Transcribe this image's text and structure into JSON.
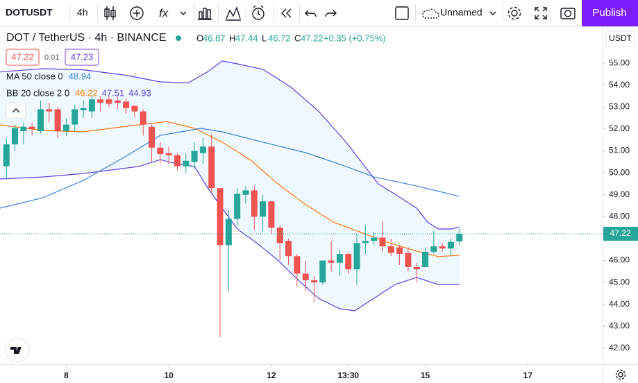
{
  "toolbar": {
    "symbol": "DOTUSDT",
    "interval": "4h",
    "layout": "Unnamed",
    "publish": "Publish"
  },
  "chart_data": {
    "type": "candlestick",
    "title": "DOT / TetherUS · 4h · BINANCE",
    "ohlc_labels": [
      "O",
      "H",
      "L",
      "C"
    ],
    "change": "+0.35 (+0.75%)",
    "bid": 47.22,
    "spread": 0.01,
    "ask": 47.23,
    "currency": "USDT",
    "indicators": [
      {
        "label": "MA 50 close 0",
        "values": [
          48.94
        ],
        "colors": [
          "#3d7fe0"
        ]
      },
      {
        "label": "BB 20 close 2 0",
        "values": [
          46.22,
          47.51,
          44.93
        ],
        "colors": [
          "#f57c00",
          "#5b3ee0",
          "#5b3ee0"
        ]
      }
    ],
    "up_color": "#26a69a",
    "down_color": "#ef5350",
    "x": [
      -28,
      -24,
      -20,
      -16,
      -12,
      -8,
      -4,
      0,
      4,
      8,
      12,
      16,
      20,
      24,
      28,
      32,
      36,
      40,
      44,
      48,
      52,
      56,
      60,
      64,
      68,
      72,
      76,
      80,
      84,
      88,
      92,
      96,
      100,
      104,
      108,
      112,
      116,
      120,
      124,
      128,
      132,
      136,
      140,
      144,
      148,
      152,
      156,
      160,
      164,
      168,
      172,
      176,
      180,
      184
    ],
    "open": [
      50.3,
      51.3,
      51.9,
      52.1,
      51.9,
      52.9,
      52.9,
      51.9,
      52.2,
      52.85,
      52.8,
      53.35,
      53.35,
      53.3,
      53.25,
      53.05,
      52.8,
      52.1,
      51.15,
      50.9,
      50.8,
      50.3,
      50.5,
      50.9,
      51.2,
      49.3,
      46.7,
      47.9,
      49.0,
      49.2,
      48.0,
      48.7,
      47.5,
      46.9,
      46.2,
      45.4,
      45.1,
      45.0,
      46.0,
      45.9,
      46.3,
      45.6,
      46.8,
      46.9,
      47.05,
      46.65,
      46.6,
      46.35,
      45.7,
      45.7,
      46.4,
      46.65,
      46.55,
      46.87
    ],
    "high": [
      51.6,
      52.2,
      52.3,
      52.3,
      53.3,
      53.2,
      53.0,
      52.5,
      53.1,
      53.3,
      53.5,
      53.5,
      53.6,
      53.5,
      53.4,
      53.1,
      52.9,
      52.2,
      51.4,
      51.2,
      50.9,
      50.9,
      51.4,
      51.6,
      51.8,
      49.3,
      48.3,
      49.3,
      49.4,
      49.4,
      49.0,
      48.7,
      47.6,
      47.0,
      46.3,
      46.0,
      45.3,
      46.0,
      46.9,
      46.5,
      46.4,
      47.2,
      47.6,
      47.3,
      47.8,
      47.0,
      46.7,
      46.6,
      45.9,
      46.6,
      47.35,
      46.8,
      47.0,
      47.44
    ],
    "low": [
      49.7,
      51.0,
      51.3,
      51.7,
      51.8,
      52.3,
      51.6,
      51.7,
      51.9,
      52.5,
      52.5,
      52.8,
      53.0,
      52.9,
      52.7,
      52.5,
      51.7,
      50.5,
      50.4,
      50.4,
      50.1,
      50.0,
      50.2,
      50.4,
      49.1,
      42.5,
      44.6,
      47.6,
      48.6,
      47.4,
      47.3,
      47.2,
      46.0,
      45.8,
      44.8,
      44.6,
      44.1,
      44.9,
      45.5,
      45.3,
      45.4,
      44.9,
      46.3,
      46.7,
      46.4,
      46.2,
      45.8,
      45.5,
      45.0,
      45.7,
      46.3,
      46.4,
      46.2,
      46.72
    ],
    "close": [
      51.3,
      52.05,
      52.1,
      52.0,
      52.9,
      52.8,
      51.9,
      52.2,
      52.9,
      52.95,
      53.35,
      53.2,
      53.15,
      53.2,
      52.95,
      52.8,
      52.2,
      51.15,
      50.85,
      50.8,
      50.3,
      50.55,
      51.0,
      51.2,
      49.3,
      46.7,
      47.9,
      49.05,
      49.2,
      48.0,
      48.7,
      47.5,
      46.8,
      46.2,
      45.4,
      45.1,
      45.0,
      46.0,
      45.9,
      46.3,
      45.6,
      46.8,
      46.9,
      47.05,
      46.65,
      46.35,
      46.3,
      45.7,
      45.6,
      46.4,
      46.65,
      46.55,
      46.85,
      47.22
    ],
    "overlays": [
      {
        "color": "#5b3ee0",
        "x": [
          -31,
          -11,
          8,
          28,
          44,
          57,
          66,
          73,
          80,
          92,
          105,
          118,
          131,
          141,
          146,
          154,
          164,
          169,
          174,
          180,
          184
        ],
        "values": [
          54.6,
          54.75,
          54.7,
          54.45,
          54.15,
          54.1,
          54.6,
          55.1,
          54.97,
          54.72,
          53.92,
          52.82,
          51.4,
          50.13,
          49.5,
          49.02,
          48.39,
          47.76,
          47.44,
          47.44,
          47.54
        ]
      },
      {
        "color": "#5b3ee0",
        "x": [
          -31,
          -11,
          8,
          34,
          44,
          50,
          60,
          66,
          73,
          80,
          89,
          99,
          109,
          118,
          128,
          135,
          144,
          154,
          164,
          174,
          184
        ],
        "values": [
          49.72,
          49.81,
          49.97,
          50.29,
          50.6,
          50.45,
          50.29,
          49.34,
          48.39,
          47.44,
          46.81,
          46.02,
          45.07,
          44.28,
          43.8,
          43.71,
          44.28,
          44.91,
          45.23,
          44.91,
          44.91
        ]
      },
      {
        "color": "#f57c00",
        "x": [
          -31,
          -11,
          8,
          28,
          47,
          60,
          73,
          86,
          99,
          112,
          125,
          138,
          151,
          164,
          174,
          184
        ],
        "values": [
          52.19,
          51.93,
          51.87,
          52.12,
          52.34,
          52.03,
          51.4,
          50.6,
          49.5,
          48.55,
          47.76,
          47.28,
          46.81,
          46.43,
          46.18,
          46.24
        ]
      },
      {
        "color": "#3d7fe0",
        "x": [
          -31,
          -11,
          8,
          28,
          44,
          63,
          73,
          92,
          112,
          131,
          144,
          164,
          184
        ],
        "values": [
          48.39,
          48.86,
          49.66,
          50.76,
          51.71,
          52.03,
          51.87,
          51.4,
          50.92,
          50.29,
          49.81,
          49.4,
          48.93
        ]
      }
    ],
    "band_fill": "rgba(33,150,243,0.07)",
    "xlim": [
      -31,
      251
    ],
    "xticks": [
      {
        "value": 0,
        "label": "8"
      },
      {
        "value": 48,
        "label": "10"
      },
      {
        "value": 96,
        "label": "12"
      },
      {
        "value": 132,
        "label": "13:30"
      },
      {
        "value": 168,
        "label": "15"
      },
      {
        "value": 216,
        "label": "17"
      }
    ],
    "ylim": [
      41.27,
      56.68
    ],
    "yticks": [
      {
        "value": 42,
        "label": "42.00"
      },
      {
        "value": 43,
        "label": "43.00"
      },
      {
        "value": 44,
        "label": "44.00"
      },
      {
        "value": 45,
        "label": "45.00"
      },
      {
        "value": 46,
        "label": "46.00"
      },
      {
        "value": 47,
        "label": "47.00"
      },
      {
        "value": 48,
        "label": "48.00"
      },
      {
        "value": 49,
        "label": "49.00"
      },
      {
        "value": 50,
        "label": "50.00"
      },
      {
        "value": 51,
        "label": "51.00"
      },
      {
        "value": 52,
        "label": "52.00"
      },
      {
        "value": 53,
        "label": "53.00"
      },
      {
        "value": 54,
        "label": "54.00"
      },
      {
        "value": 55,
        "label": "55.00"
      }
    ]
  }
}
